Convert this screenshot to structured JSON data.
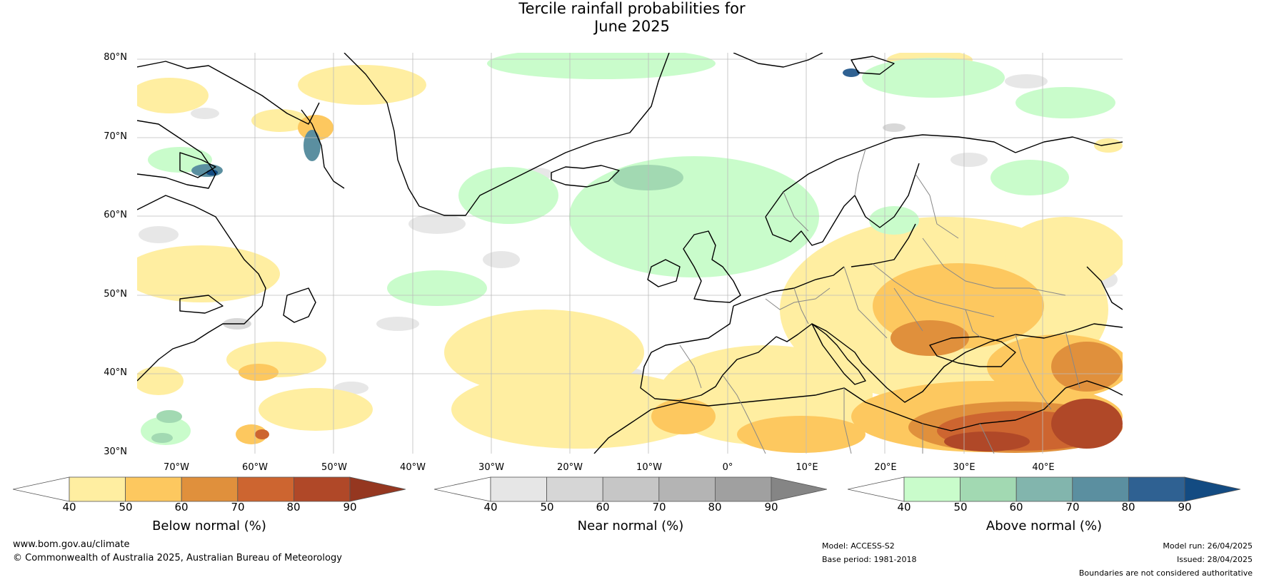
{
  "title": {
    "line1": "Tercile rainfall probabilities for",
    "line2": "June 2025"
  },
  "map": {
    "lat_labels": [
      "80°N",
      "70°N",
      "60°N",
      "50°N",
      "40°N",
      "30°N"
    ],
    "lon_labels": [
      "70°W",
      "60°W",
      "50°W",
      "40°W",
      "30°W",
      "20°W",
      "10°W",
      "0°",
      "10°E",
      "20°E",
      "30°E",
      "40°E"
    ],
    "extent": {
      "lon_min": -85,
      "lon_max": 50,
      "lat_min": 30,
      "lat_max": 81
    },
    "colors": {
      "land_outline": "#000000",
      "border": "#888888",
      "grid": "#bbbbbb",
      "background": "#ffffff"
    }
  },
  "colorbars": [
    {
      "title": "Below normal (%)",
      "ticks": [
        "40",
        "50",
        "60",
        "70",
        "80",
        "90"
      ],
      "colors": [
        "#ffeea1",
        "#fdc85f",
        "#e0903c",
        "#cd6530",
        "#b04828",
        "#953720"
      ]
    },
    {
      "title": "Near normal (%)",
      "ticks": [
        "40",
        "50",
        "60",
        "70",
        "80",
        "90"
      ],
      "colors": [
        "#e6e6e6",
        "#d6d6d6",
        "#c6c6c6",
        "#b4b4b4",
        "#a0a0a0",
        "#858585"
      ]
    },
    {
      "title": "Above normal (%)",
      "ticks": [
        "40",
        "50",
        "60",
        "70",
        "80",
        "90"
      ],
      "colors": [
        "#c9fccb",
        "#a2d9b2",
        "#82b5ad",
        "#5b8fa0",
        "#2f6192",
        "#134b82"
      ]
    }
  ],
  "footer": {
    "website": "www.bom.gov.au/climate",
    "copyright": "© Commonwealth of Australia 2025, Australian Bureau of Meteorology",
    "model": "Model: ACCESS-S2",
    "base_period": "Base period: 1981-2018",
    "model_run": "Model run: 26/04/2025",
    "issued": "Issued: 28/04/2025",
    "disclaimer": "Boundaries are not considered authoritative"
  }
}
